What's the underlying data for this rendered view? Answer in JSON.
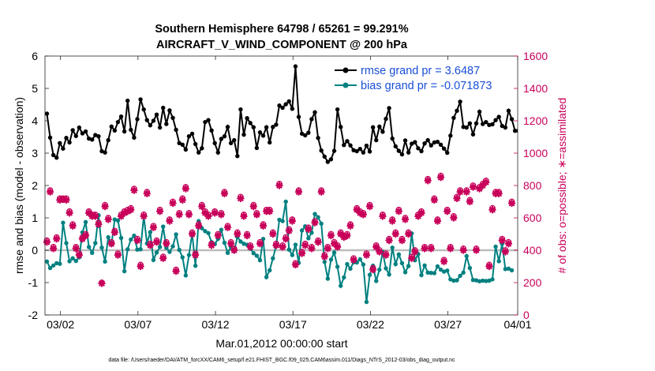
{
  "chart_data": {
    "type": "line",
    "title": "Southern Hemisphere 64798 / 65261 = 99.291%",
    "subtitle": "AIRCRAFT_V_WIND_COMPONENT @ 200 hPa",
    "xlabel": "Mar.01,2012 00:00:00 start",
    "ylabel_left": "rmse and bias (model - observation)",
    "ylabel_right": "# of obs: o=possible; ∗=assimilated",
    "footnote": "data file: /Users/raeder/DAI/ATM_forcXX/CAM6_setup/f.e21.FHIST_BGC.f09_025.CAM6assim.011/Diags_NTrS_2012-03/obs_diag_output.nc",
    "xlim": [
      0.5,
      31.0
    ],
    "ylim_left": [
      -2,
      6
    ],
    "ylim_right": [
      0,
      1600
    ],
    "x_ticks": [
      1.5,
      6.5,
      11.5,
      16.5,
      21.5,
      26.5,
      31.0
    ],
    "x_tick_labels": [
      "03/02",
      "03/07",
      "03/12",
      "03/17",
      "03/22",
      "03/27",
      "04/01"
    ],
    "y_ticks_left": [
      -2,
      -1,
      0,
      1,
      2,
      3,
      4,
      5,
      6
    ],
    "y_tick_labels_left": [
      "-2",
      "-1",
      "0",
      "1",
      "2",
      "3",
      "4",
      "5",
      "6"
    ],
    "y_ticks_right": [
      0,
      200,
      400,
      600,
      800,
      1000,
      1200,
      1400,
      1600
    ],
    "y_tick_labels_right": [
      "0",
      "200",
      "400",
      "600",
      "800",
      "1000",
      "1200",
      "1400",
      "1600"
    ],
    "legend_position": "top-right",
    "zero_line": 0,
    "series": [
      {
        "name": "rmse grand pr = 3.6487",
        "axis": "left",
        "style": "line-marker",
        "color": "#000000",
        "values": [
          4.22,
          3.48,
          2.94,
          2.86,
          3.31,
          3.14,
          3.47,
          3.33,
          3.71,
          3.53,
          3.79,
          3.61,
          3.67,
          3.45,
          3.42,
          3.56,
          3.52,
          3.06,
          3.02,
          3.4,
          3.82,
          3.7,
          3.96,
          4.13,
          3.67,
          4.62,
          3.72,
          3.48,
          4.05,
          4.66,
          4.35,
          4.02,
          3.86,
          4.0,
          4.19,
          3.79,
          4.4,
          3.9,
          4.32,
          4.09,
          3.72,
          3.31,
          3.26,
          3.11,
          3.52,
          3.6,
          3.28,
          3.02,
          3.15,
          3.96,
          4.02,
          3.7,
          3.31,
          3.02,
          3.44,
          3.52,
          3.81,
          3.31,
          3.4,
          2.91,
          4.35,
          3.57,
          4.08,
          3.93,
          3.8,
          3.16,
          3.64,
          3.54,
          3.8,
          3.33,
          3.81,
          3.88,
          4.47,
          4.4,
          4.51,
          4.6,
          4.37,
          5.68,
          4.12,
          3.6,
          3.55,
          3.63,
          4.05,
          4.26,
          3.47,
          3.08,
          2.89,
          2.73,
          2.81,
          3.07,
          4.35,
          3.81,
          3.25,
          3.37,
          3.24,
          3.09,
          3.06,
          3.13,
          3.02,
          3.23,
          3.05,
          3.8,
          3.4,
          3.82,
          3.66,
          4.06,
          4.39,
          3.45,
          3.21,
          3.07,
          2.96,
          3.39,
          3.02,
          3.29,
          3.34,
          3.15,
          3.06,
          3.3,
          3.4,
          3.24,
          3.33,
          3.35,
          3.26,
          3.14,
          3.01,
          3.54,
          4.09,
          4.31,
          4.59,
          3.81,
          3.79,
          3.92,
          3.58,
          3.92,
          4.28,
          3.9,
          3.96,
          3.87,
          3.89,
          4.02,
          4.12,
          3.84,
          3.79,
          4.31,
          4.05,
          3.69,
          3.69,
          4.29,
          3.93
        ]
      },
      {
        "name": "bias grand pr = -0.071873",
        "axis": "left",
        "style": "line-marker",
        "color": "#008080",
        "values": [
          -0.35,
          -0.55,
          -0.47,
          -0.4,
          -0.42,
          0.85,
          0.22,
          -0.34,
          -0.25,
          -0.33,
          -0.22,
          0.55,
          0.87,
          0.1,
          -0.08,
          0.22,
          1.08,
          0.08,
          -0.35,
          0.4,
          0.18,
          0.95,
          0.92,
          0.38,
          -0.65,
          0.03,
          0.33,
          0.45,
          0.02,
          0.03,
          1.05,
          0.21,
          0.56,
          -0.3,
          -0.07,
          0.1,
          0.73,
          0.07,
          -0.05,
          0.12,
          0.49,
          0.01,
          -0.22,
          -0.78,
          -0.15,
          0.52,
          -0.48,
          0.9,
          0.68,
          0.59,
          0.53,
          0.25,
          0.19,
          0.35,
          0.63,
          0.23,
          -0.08,
          0.1,
          -0.03,
          0.41,
          0.27,
          0.2,
          0.17,
          0.05,
          -0.09,
          -0.17,
          -0.31,
          0.35,
          -0.83,
          -0.62,
          -0.25,
          0.13,
          0.94,
          0.9,
          1.5,
          0.02,
          -0.15,
          0.17,
          -0.39,
          0.61,
          0.74,
          0.37,
          0.54,
          1.12,
          1.02,
          0.82,
          -0.36,
          -0.88,
          -0.29,
          -0.07,
          -0.51,
          -1.1,
          -0.84,
          -0.43,
          -0.57,
          -0.37,
          -0.38,
          -0.28,
          -0.44,
          -1.6,
          -0.76,
          -0.48,
          -0.95,
          -0.6,
          -0.05,
          -0.56,
          -0.75,
          0.08,
          -0.43,
          -0.13,
          -0.4,
          -0.68,
          -0.49,
          0.52,
          -0.31,
          -0.12,
          -0.77,
          -0.47,
          -0.69,
          -0.7,
          -0.71,
          -0.5,
          -0.6,
          -0.66,
          -0.63,
          -0.9,
          -0.94,
          -0.93,
          -0.79,
          -0.69,
          -0.18,
          -0.55,
          -0.92,
          -0.93,
          -0.96,
          -0.94,
          -0.95,
          -0.94,
          -0.9,
          0.11,
          -0.34,
          0.2,
          -0.58,
          -0.57,
          -0.62
        ]
      },
      {
        "name": "# obs possible",
        "axis": "right",
        "style": "circle-marker",
        "color": "#c8005a",
        "values": [
          460,
          770,
          420,
          480,
          720,
          720,
          720,
          640,
          560,
          420,
          380,
          480,
          500,
          640,
          620,
          620,
          570,
          200,
          680,
          600,
          450,
          520,
          380,
          620,
          640,
          650,
          660,
          780,
          470,
          310,
          620,
          760,
          440,
          550,
          460,
          650,
          360,
          450,
          590,
          700,
          280,
          630,
          720,
          790,
          630,
          510,
          380,
          560,
          680,
          640,
          620,
          440,
          640,
          500,
          630,
          760,
          550,
          450,
          410,
          510,
          730,
          620,
          500,
          430,
          680,
          630,
          450,
          560,
          650,
          650,
          510,
          440,
          810,
          430,
          480,
          530,
          590,
          320,
          770,
          390,
          440,
          540,
          420,
          580,
          460,
          770,
          370,
          420,
          500,
          450,
          430,
          510,
          490,
          500,
          560,
          350,
          660,
          640,
          630,
          380,
          680,
          290,
          430,
          400,
          620,
          380,
          470,
          590,
          510,
          650,
          470,
          600,
          510,
          360,
          400,
          620,
          640,
          420,
          840,
          420,
          720,
          590,
          860,
          340,
          650,
          420,
          610,
          730,
          770,
          410,
          770,
          710,
          800,
          410,
          790,
          810,
          830,
          310,
          660,
          760,
          760,
          470,
          400,
          450,
          700
        ]
      },
      {
        "name": "# obs assimilated",
        "axis": "right",
        "style": "star-marker",
        "color": "#c8005a",
        "values": [
          450,
          760,
          410,
          470,
          710,
          715,
          710,
          630,
          550,
          410,
          370,
          470,
          490,
          630,
          610,
          610,
          560,
          195,
          670,
          590,
          440,
          510,
          370,
          610,
          630,
          640,
          650,
          770,
          460,
          300,
          610,
          750,
          430,
          540,
          450,
          640,
          350,
          440,
          580,
          690,
          270,
          620,
          710,
          780,
          620,
          500,
          370,
          550,
          670,
          630,
          610,
          430,
          630,
          490,
          620,
          750,
          540,
          440,
          400,
          500,
          720,
          610,
          490,
          420,
          670,
          620,
          440,
          550,
          640,
          640,
          500,
          430,
          800,
          420,
          470,
          520,
          580,
          310,
          760,
          380,
          430,
          530,
          410,
          570,
          450,
          760,
          360,
          410,
          490,
          440,
          420,
          500,
          480,
          490,
          550,
          340,
          650,
          630,
          620,
          370,
          670,
          280,
          420,
          390,
          610,
          370,
          460,
          580,
          500,
          640,
          460,
          590,
          500,
          350,
          390,
          610,
          630,
          410,
          830,
          410,
          710,
          580,
          850,
          330,
          640,
          410,
          600,
          720,
          760,
          400,
          760,
          700,
          790,
          400,
          780,
          800,
          820,
          300,
          650,
          750,
          750,
          460,
          390,
          440,
          690
        ]
      }
    ]
  }
}
